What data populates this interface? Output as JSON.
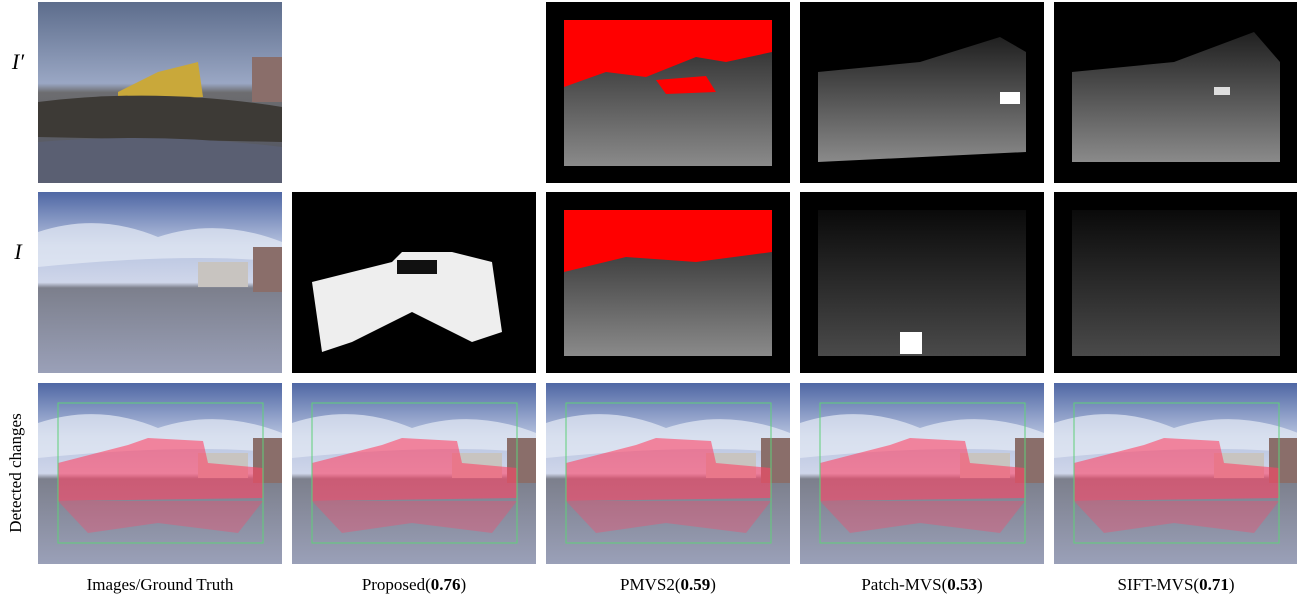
{
  "row_labels": [
    "I′",
    "I",
    "Detected changes"
  ],
  "columns": [
    {
      "prefix": "Images/Ground Truth"
    },
    {
      "prefix": "Proposed(",
      "score": "0.76",
      "suffix": ")"
    },
    {
      "prefix": "PMVS2(",
      "score": "0.59",
      "suffix": ")"
    },
    {
      "prefix": "Patch-MVS(",
      "score": "0.53",
      "suffix": ")"
    },
    {
      "prefix": "SIFT-MVS(",
      "score": "0.71",
      "suffix": ")"
    }
  ]
}
